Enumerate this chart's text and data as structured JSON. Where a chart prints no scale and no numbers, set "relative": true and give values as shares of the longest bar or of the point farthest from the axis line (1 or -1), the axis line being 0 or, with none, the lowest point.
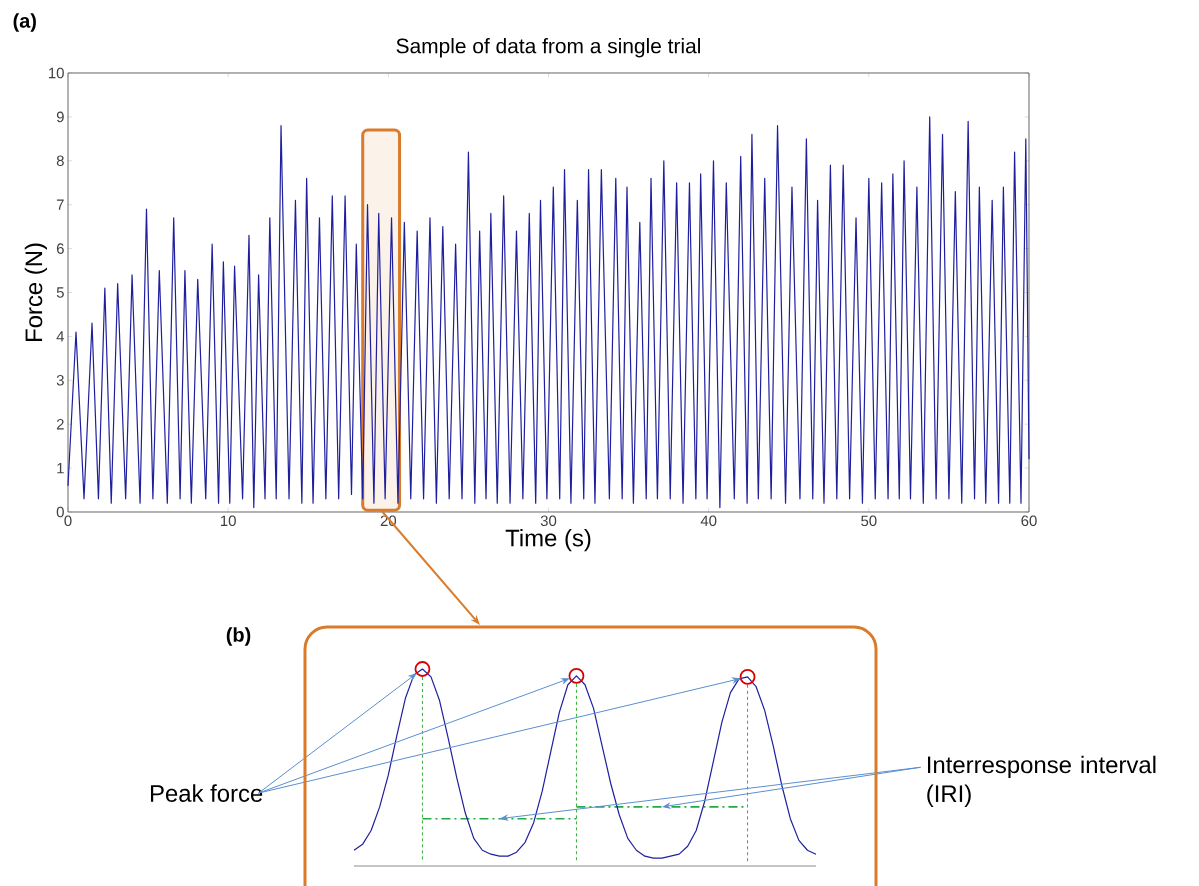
{
  "chart_data": [
    {
      "type": "line",
      "title": "Sample of data from a single trial",
      "xlabel": "Time (s)",
      "ylabel": "Force (N)",
      "annotations": [
        "(a)"
      ],
      "x": [
        0,
        0.5,
        1.0,
        1.5,
        1.9,
        2.3,
        2.7,
        3.1,
        3.6,
        4.0,
        4.5,
        4.9,
        5.3,
        5.7,
        6.2,
        6.6,
        7.0,
        7.3,
        7.7,
        8.1,
        8.6,
        9.0,
        9.4,
        9.7,
        10.1,
        10.4,
        10.9,
        11.3,
        11.6,
        11.9,
        12.3,
        12.6,
        13.0,
        13.3,
        13.8,
        14.2,
        14.6,
        14.9,
        15.3,
        15.7,
        16.1,
        16.5,
        16.9,
        17.3,
        17.7,
        18.0,
        18.4,
        18.7,
        19.1,
        19.4,
        19.8,
        20.2,
        20.6,
        21.0,
        21.4,
        21.8,
        22.2,
        22.6,
        23.0,
        23.4,
        23.8,
        24.2,
        24.6,
        25.0,
        25.4,
        25.7,
        26.1,
        26.4,
        26.8,
        27.2,
        27.6,
        28.0,
        28.4,
        28.8,
        29.2,
        29.5,
        29.9,
        30.3,
        30.7,
        31.0,
        31.4,
        31.8,
        32.2,
        32.5,
        32.9,
        33.3,
        33.8,
        34.2,
        34.6,
        34.9,
        35.3,
        35.7,
        36.1,
        36.4,
        36.8,
        37.2,
        37.6,
        38.0,
        38.4,
        38.8,
        39.2,
        39.5,
        39.9,
        40.3,
        40.7,
        41.1,
        41.6,
        42.0,
        42.4,
        42.7,
        43.1,
        43.5,
        43.9,
        44.3,
        44.8,
        45.2,
        45.7,
        46.1,
        46.5,
        46.8,
        47.2,
        47.6,
        48.0,
        48.4,
        48.8,
        49.2,
        49.6,
        50.0,
        50.4,
        50.8,
        51.2,
        51.5,
        51.9,
        52.2,
        52.6,
        53.0,
        53.4,
        53.8,
        54.2,
        54.6,
        55.0,
        55.4,
        55.8,
        56.2,
        56.6,
        56.9,
        57.3,
        57.7,
        58.1,
        58.4,
        58.8,
        59.1,
        59.5,
        59.8,
        60
      ],
      "series": [
        {
          "color": "#1f1f9e",
          "values": [
            0.6,
            4.1,
            0.3,
            4.3,
            0.3,
            5.1,
            0.2,
            5.2,
            0.3,
            5.4,
            0.2,
            6.9,
            0.3,
            5.5,
            0.2,
            6.7,
            0.3,
            5.5,
            0.2,
            5.3,
            0.3,
            6.1,
            0.2,
            5.7,
            0.2,
            5.6,
            0.3,
            6.3,
            0.1,
            5.4,
            0.3,
            6.7,
            0.3,
            8.8,
            0.3,
            7.1,
            0.2,
            7.6,
            0.2,
            6.7,
            0.3,
            7.2,
            0.3,
            7.2,
            0.4,
            6.1,
            0.3,
            7.0,
            0.2,
            6.8,
            0.3,
            6.7,
            0.2,
            6.6,
            0.3,
            6.4,
            0.3,
            6.7,
            0.2,
            6.5,
            0.3,
            6.1,
            0.3,
            8.2,
            0.2,
            6.4,
            0.3,
            6.8,
            0.2,
            7.2,
            0.2,
            6.4,
            0.3,
            6.8,
            0.2,
            7.1,
            0.3,
            7.4,
            0.3,
            7.8,
            0.2,
            7.1,
            0.3,
            7.8,
            0.2,
            7.8,
            0.3,
            7.6,
            0.3,
            7.4,
            0.2,
            6.6,
            0.3,
            7.6,
            0.3,
            8.0,
            0.3,
            7.5,
            0.2,
            7.5,
            0.3,
            7.7,
            0.3,
            8.0,
            0.1,
            7.5,
            0.3,
            8.1,
            0.2,
            8.6,
            0.3,
            7.6,
            0.3,
            8.8,
            0.2,
            7.4,
            0.3,
            8.5,
            0.3,
            7.1,
            0.2,
            7.9,
            0.3,
            7.9,
            0.3,
            6.7,
            0.2,
            7.6,
            0.3,
            7.5,
            0.3,
            7.7,
            0.3,
            8.0,
            0.3,
            7.4,
            0.2,
            9.0,
            0.3,
            8.6,
            0.3,
            7.3,
            0.2,
            8.9,
            0.3,
            7.4,
            0.2,
            7.1,
            0.2,
            7.4,
            0.2,
            8.2,
            0.2,
            8.5,
            1.2
          ]
        }
      ],
      "xlim": [
        0,
        60
      ],
      "ylim": [
        0,
        10
      ],
      "xticks": [
        0,
        10,
        20,
        30,
        40,
        50,
        60
      ],
      "yticks": [
        0,
        1,
        2,
        3,
        4,
        5,
        6,
        7,
        8,
        9,
        10
      ],
      "bands": [
        {
          "axis": "x",
          "from": 18.4,
          "to": 20.7,
          "color": "#d97b2a"
        }
      ]
    },
    {
      "type": "line",
      "relative": true,
      "grid": "x",
      "ref_lines": [
        {
          "axis": "y",
          "value": 0.24,
          "color": "#22aa44",
          "line_style": "dashed"
        },
        {
          "axis": "y",
          "value": 0.3,
          "color": "#22aa44",
          "line_style": "dashed"
        }
      ],
      "annotations": [
        "(b)",
        "Peak force",
        "Interresponse interval (IRI)"
      ],
      "categories": [
        null,
        null,
        null,
        null,
        null,
        null,
        null,
        null,
        null,
        null,
        null,
        null,
        null,
        null,
        null,
        null,
        null,
        null,
        null,
        null,
        null,
        null,
        null,
        null,
        null,
        null,
        null,
        null,
        null,
        null,
        null,
        null,
        null,
        null,
        null,
        null,
        null,
        null,
        null,
        null,
        null,
        null,
        null,
        null,
        null,
        null,
        null,
        null,
        null,
        null,
        null,
        null,
        null,
        null,
        null
      ],
      "series": [
        {
          "color": "#1f1f9e",
          "values": [
            0.08,
            0.11,
            0.18,
            0.3,
            0.46,
            0.66,
            0.85,
            0.97,
            1.0,
            0.96,
            0.84,
            0.65,
            0.45,
            0.27,
            0.14,
            0.08,
            0.06,
            0.05,
            0.05,
            0.07,
            0.12,
            0.22,
            0.38,
            0.58,
            0.78,
            0.92,
            0.965,
            0.92,
            0.8,
            0.61,
            0.42,
            0.26,
            0.14,
            0.08,
            0.05,
            0.04,
            0.04,
            0.05,
            0.06,
            0.1,
            0.18,
            0.33,
            0.53,
            0.73,
            0.88,
            0.95,
            0.96,
            0.91,
            0.79,
            0.61,
            0.41,
            0.24,
            0.13,
            0.08,
            0.06
          ]
        }
      ]
    }
  ]
}
